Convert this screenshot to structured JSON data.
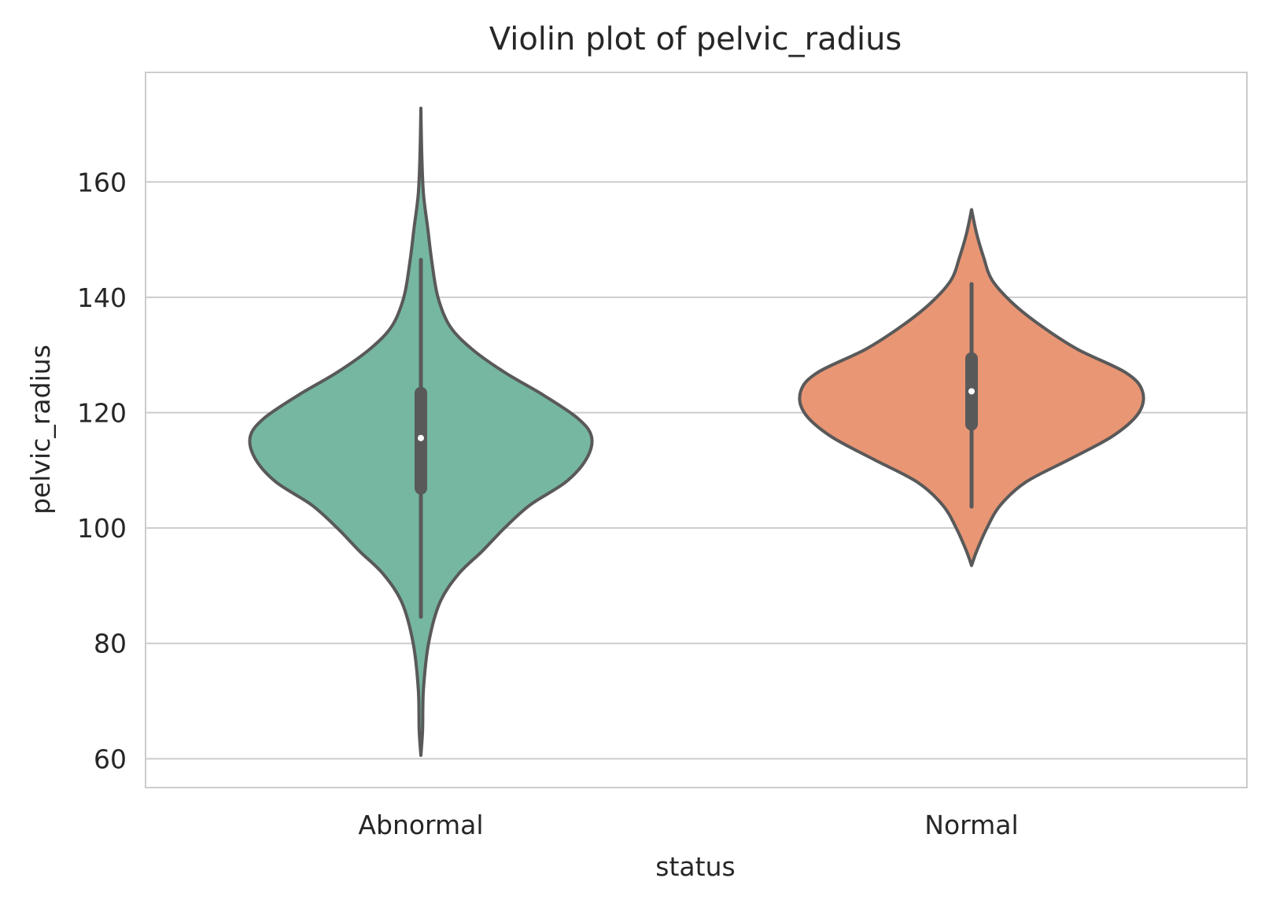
{
  "chart_data": {
    "type": "violin",
    "title": "Violin plot of pelvic_radius",
    "xlabel": "status",
    "ylabel": "pelvic_radius",
    "categories": [
      "Abnormal",
      "Normal"
    ],
    "ylim": [
      55,
      179
    ],
    "yticks": [
      60,
      80,
      100,
      120,
      140,
      160
    ],
    "grid": "horizontal",
    "violins": [
      {
        "category": "Abnormal",
        "color": "#76b7a2",
        "range": [
          60.6,
          172.8
        ],
        "whiskers": [
          84.6,
          146.5
        ],
        "quartiles": [
          106.9,
          123.4
        ],
        "median": 115.6,
        "density": [
          {
            "y": 60.6,
            "w": 0.0
          },
          {
            "y": 65,
            "w": 0.01
          },
          {
            "y": 72,
            "w": 0.015
          },
          {
            "y": 80,
            "w": 0.045
          },
          {
            "y": 87,
            "w": 0.11
          },
          {
            "y": 92,
            "w": 0.22
          },
          {
            "y": 96,
            "w": 0.36
          },
          {
            "y": 100,
            "w": 0.49
          },
          {
            "y": 104,
            "w": 0.64
          },
          {
            "y": 108,
            "w": 0.85
          },
          {
            "y": 112,
            "w": 0.97
          },
          {
            "y": 115.8,
            "w": 1.0
          },
          {
            "y": 119,
            "w": 0.92
          },
          {
            "y": 123,
            "w": 0.72
          },
          {
            "y": 127,
            "w": 0.49
          },
          {
            "y": 131,
            "w": 0.3
          },
          {
            "y": 135,
            "w": 0.17
          },
          {
            "y": 140,
            "w": 0.1
          },
          {
            "y": 146,
            "w": 0.065
          },
          {
            "y": 152,
            "w": 0.04
          },
          {
            "y": 158,
            "w": 0.015
          },
          {
            "y": 165,
            "w": 0.005
          },
          {
            "y": 172.8,
            "w": 0.0
          }
        ]
      },
      {
        "category": "Normal",
        "color": "#e99675",
        "range": [
          93.5,
          155.2
        ],
        "whiskers": [
          103.7,
          142.3
        ],
        "quartiles": [
          118.0,
          129.4
        ],
        "median": 123.7,
        "density": [
          {
            "y": 93.5,
            "w": 0.0
          },
          {
            "y": 96,
            "w": 0.03
          },
          {
            "y": 100,
            "w": 0.09
          },
          {
            "y": 104,
            "w": 0.17
          },
          {
            "y": 108,
            "w": 0.32
          },
          {
            "y": 112,
            "w": 0.58
          },
          {
            "y": 116,
            "w": 0.83
          },
          {
            "y": 120,
            "w": 0.98
          },
          {
            "y": 123.8,
            "w": 1.0
          },
          {
            "y": 127,
            "w": 0.9
          },
          {
            "y": 131,
            "w": 0.62
          },
          {
            "y": 135,
            "w": 0.41
          },
          {
            "y": 139,
            "w": 0.24
          },
          {
            "y": 143,
            "w": 0.12
          },
          {
            "y": 147,
            "w": 0.07
          },
          {
            "y": 151,
            "w": 0.03
          },
          {
            "y": 155.2,
            "w": 0.0
          }
        ]
      }
    ]
  }
}
